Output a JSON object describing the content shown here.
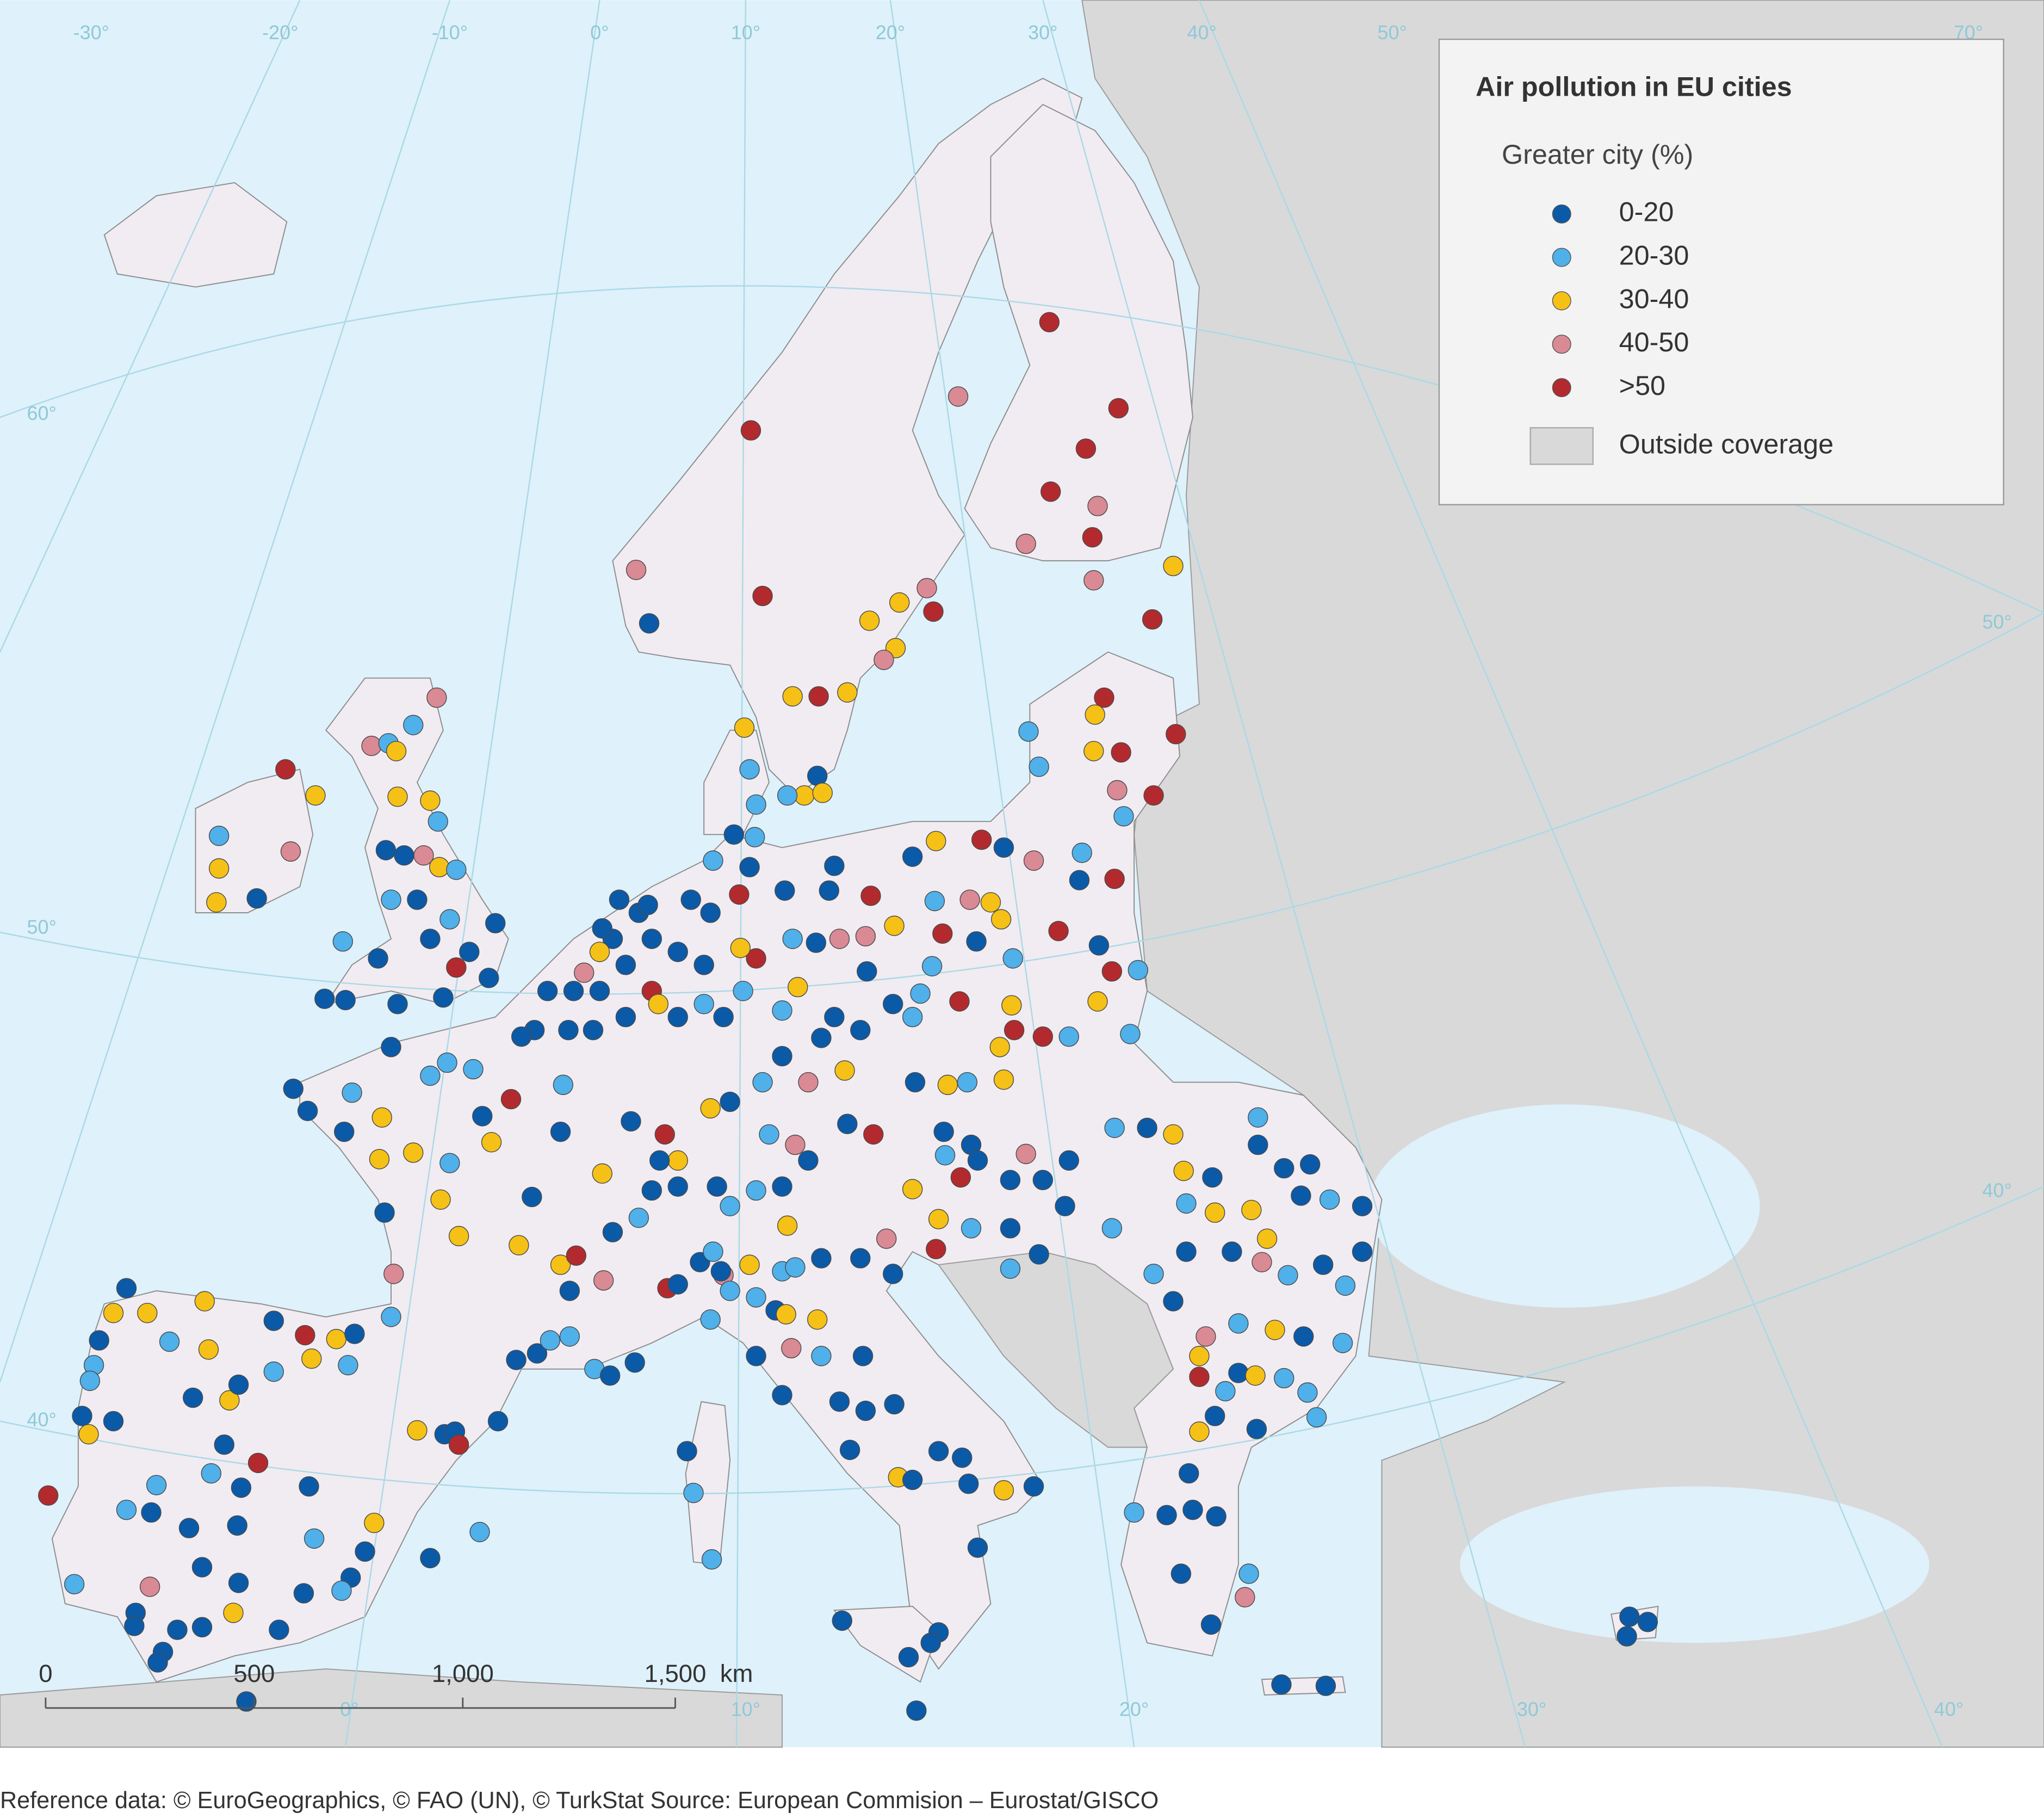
{
  "legend": {
    "title": "Air pollution in EU cities",
    "subtitle": "Greater city (%)",
    "items": [
      {
        "label": "0-20",
        "color": "#0b5aa8"
      },
      {
        "label": "20-30",
        "color": "#4fb0ea"
      },
      {
        "label": "30-40",
        "color": "#f5c116"
      },
      {
        "label": "40-50",
        "color": "#d98a94"
      },
      {
        "label": ">50",
        "color": "#b32a2e"
      }
    ],
    "outside": "Outside coverage"
  },
  "scale_bar": {
    "labels": [
      "0",
      "500",
      "1,000",
      "1,500"
    ],
    "unit": "km"
  },
  "graticule": {
    "top": [
      "-30°",
      "-20°",
      "-10°",
      "0°",
      "10°",
      "20°",
      "30°",
      "40°",
      "50°",
      "70°"
    ],
    "left": [
      "60°",
      "50°",
      "40°"
    ],
    "right": [
      "50°",
      "40°"
    ],
    "bottom": [
      "0°",
      "10°",
      "20°",
      "30°",
      "40°"
    ]
  },
  "source": "Reference data: © EuroGeographics, © FAO (UN), © TurkStat Source: European Commision – Eurostat/GISCO"
}
